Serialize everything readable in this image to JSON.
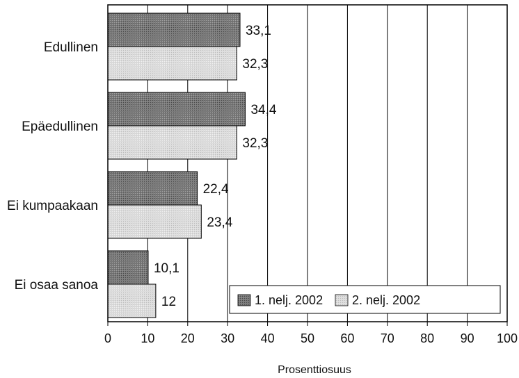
{
  "chart_data": {
    "type": "bar",
    "orientation": "horizontal",
    "categories": [
      "Edullinen",
      "Epäedullinen",
      "Ei kumpaakaan",
      "Ei osaa sanoa"
    ],
    "series": [
      {
        "name": "1. nelj. 2002",
        "values": [
          33.1,
          34.4,
          22.4,
          10.1
        ],
        "labels": [
          "33,1",
          "34,4",
          "22,4",
          "10,1"
        ],
        "color": "#7a7a7a"
      },
      {
        "name": "2. nelj. 2002",
        "values": [
          32.3,
          32.3,
          23.4,
          12
        ],
        "labels": [
          "32,3",
          "32,3",
          "23,4",
          "12"
        ],
        "color": "#d9d9d9"
      }
    ],
    "xlabel": "Prosenttiosuus",
    "xlim": [
      0,
      100
    ],
    "xticks": [
      0,
      10,
      20,
      30,
      40,
      50,
      60,
      70,
      80,
      90,
      100
    ],
    "grid": true,
    "legend_position": "bottom-right"
  }
}
